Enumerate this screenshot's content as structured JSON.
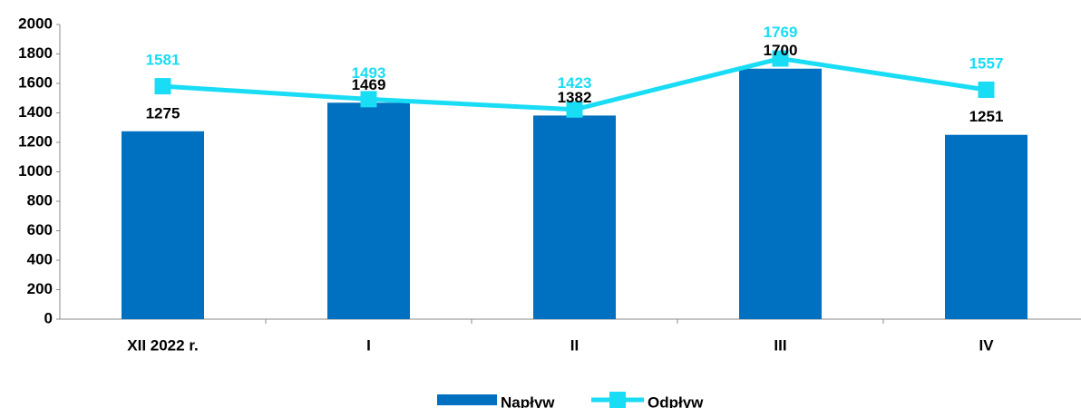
{
  "chart_data": {
    "type": "bar",
    "categories": [
      "XII 2022 r.",
      "I",
      "II",
      "III",
      "IV"
    ],
    "series": [
      {
        "name": "Napływ",
        "type": "bar",
        "color": "#0070c0",
        "values": [
          1275,
          1469,
          1382,
          1700,
          1251
        ]
      },
      {
        "name": "Odpływ",
        "type": "line",
        "color": "#19dcf5",
        "values": [
          1581,
          1493,
          1423,
          1769,
          1557
        ]
      }
    ],
    "ylim": [
      0,
      2000
    ],
    "yticks": [
      0,
      200,
      400,
      600,
      800,
      1000,
      1200,
      1400,
      1600,
      1800,
      2000
    ],
    "grid": false,
    "legend": "bottom"
  }
}
